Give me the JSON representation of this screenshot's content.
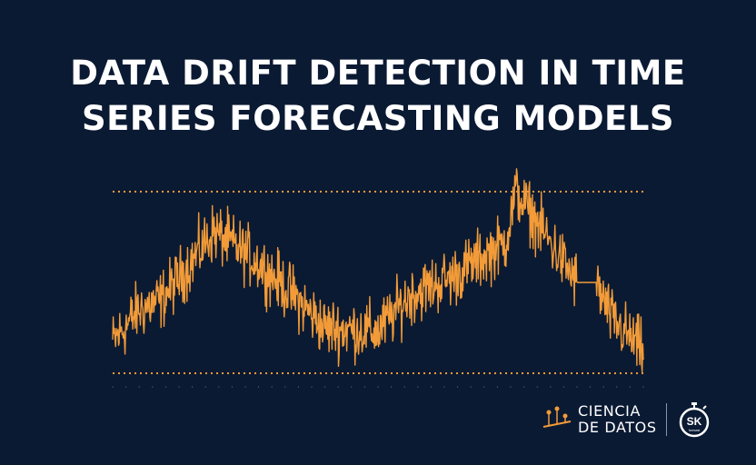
{
  "title": {
    "line1": "DATA DRIFT DETECTION IN TIME",
    "line2": "SERIES FORECASTING MODELS"
  },
  "logo": {
    "line1": "CIENCIA",
    "line2": "DE DATOS",
    "badge_text": "SK",
    "badge_small_text": "forecast"
  },
  "colors": {
    "background": "#0b1a33",
    "series": "#f29b38",
    "bounds": "#f29b38",
    "text": "#ffffff"
  },
  "chart_data": {
    "type": "line",
    "x_ticks": 40,
    "y_range": [
      0,
      100
    ],
    "bounds": {
      "upper": 100,
      "lower": 0
    },
    "grid": false,
    "legend": "none",
    "series": [
      {
        "trend": [
          [
            0,
            17
          ],
          [
            0.05,
            35
          ],
          [
            0.09,
            40
          ],
          [
            0.14,
            58
          ],
          [
            0.19,
            78
          ],
          [
            0.27,
            62
          ],
          [
            0.34,
            43
          ],
          [
            0.4,
            25
          ],
          [
            0.5,
            23
          ],
          [
            0.56,
            43
          ],
          [
            0.64,
            53
          ],
          [
            0.74,
            72
          ],
          [
            0.76,
            100
          ],
          [
            0.79,
            87
          ],
          [
            0.87,
            52
          ],
          [
            0.91,
            50
          ],
          [
            0.94,
            30
          ],
          [
            1.0,
            12
          ]
        ],
        "flat_segment": [
          0.875,
          0.912,
          50
        ]
      }
    ]
  }
}
